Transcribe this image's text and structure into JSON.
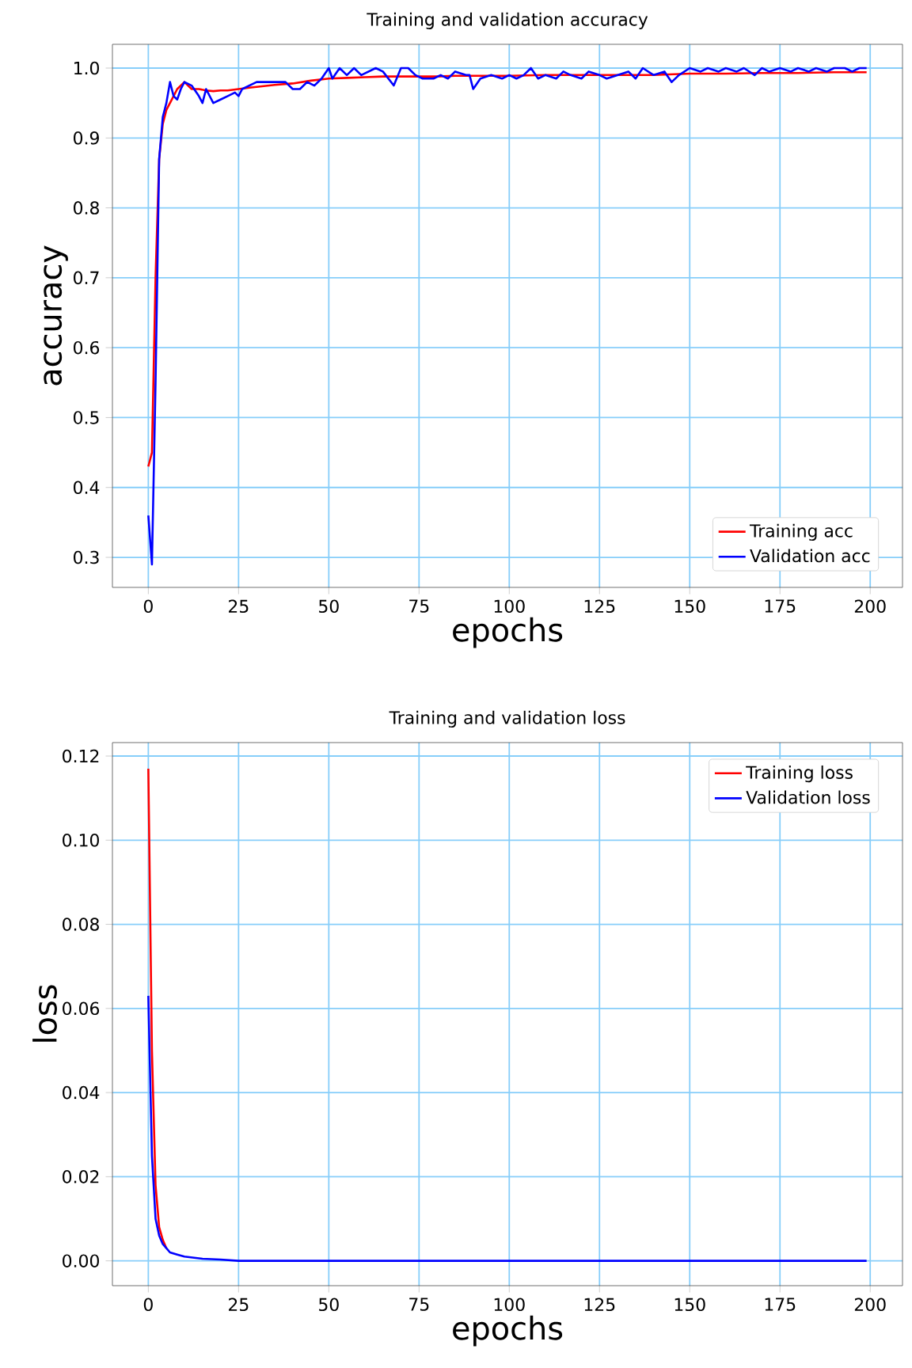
{
  "chart_data": [
    {
      "type": "line",
      "title": "Training and validation accuracy",
      "xlabel": "epochs",
      "ylabel": "accuracy",
      "xlim": [
        -9.95,
        208.95
      ],
      "ylim": [
        0.257,
        1.034
      ],
      "xticks": [
        0,
        25,
        50,
        75,
        100,
        125,
        150,
        175,
        200
      ],
      "yticks": [
        {
          "value": 0.3,
          "label": "0.3"
        },
        {
          "value": 0.4,
          "label": "0.4"
        },
        {
          "value": 0.5,
          "label": "0.5"
        },
        {
          "value": 0.6,
          "label": "0.6"
        },
        {
          "value": 0.7,
          "label": "0.7"
        },
        {
          "value": 0.8,
          "label": "0.8"
        },
        {
          "value": 0.9,
          "label": "0.9"
        },
        {
          "value": 1.0,
          "label": "1.0"
        }
      ],
      "grid": true,
      "legend": "bottom right",
      "series": [
        {
          "name": "Training acc",
          "color": "#ff0000",
          "x": [
            0,
            1,
            2,
            3,
            4,
            5,
            6,
            7,
            8,
            9,
            10,
            11,
            12,
            14,
            16,
            18,
            20,
            22,
            25,
            28,
            30,
            35,
            40,
            45,
            50,
            55,
            60,
            65,
            70,
            75,
            80,
            85,
            90,
            100,
            110,
            120,
            130,
            140,
            150,
            160,
            170,
            180,
            190,
            199
          ],
          "values": [
            0.43,
            0.45,
            0.7,
            0.87,
            0.92,
            0.94,
            0.95,
            0.96,
            0.97,
            0.975,
            0.98,
            0.975,
            0.97,
            0.97,
            0.968,
            0.967,
            0.968,
            0.968,
            0.97,
            0.972,
            0.973,
            0.976,
            0.978,
            0.982,
            0.985,
            0.986,
            0.987,
            0.988,
            0.988,
            0.988,
            0.988,
            0.989,
            0.989,
            0.989,
            0.99,
            0.99,
            0.99,
            0.99,
            0.992,
            0.992,
            0.993,
            0.993,
            0.994,
            0.994
          ]
        },
        {
          "name": "Validation acc",
          "color": "#0000ff",
          "x": [
            0,
            1,
            2,
            3,
            4,
            5,
            6,
            7,
            8,
            9,
            10,
            12,
            14,
            15,
            16,
            18,
            20,
            22,
            24,
            25,
            26,
            28,
            30,
            35,
            38,
            40,
            42,
            44,
            46,
            48,
            50,
            51,
            53,
            55,
            57,
            59,
            61,
            63,
            65,
            68,
            70,
            72,
            74,
            76,
            79,
            81,
            83,
            85,
            88,
            89,
            90,
            92,
            95,
            98,
            100,
            102,
            104,
            106,
            108,
            110,
            113,
            115,
            117,
            120,
            122,
            125,
            127,
            130,
            133,
            135,
            137,
            140,
            143,
            145,
            147,
            150,
            153,
            155,
            158,
            160,
            163,
            165,
            168,
            170,
            172,
            175,
            178,
            180,
            183,
            185,
            188,
            190,
            193,
            195,
            197,
            199
          ],
          "values": [
            0.36,
            0.29,
            0.55,
            0.87,
            0.93,
            0.95,
            0.98,
            0.96,
            0.955,
            0.97,
            0.98,
            0.975,
            0.96,
            0.95,
            0.97,
            0.95,
            0.955,
            0.96,
            0.965,
            0.96,
            0.97,
            0.975,
            0.98,
            0.98,
            0.98,
            0.97,
            0.97,
            0.98,
            0.975,
            0.985,
            1.0,
            0.985,
            1.0,
            0.99,
            1.0,
            0.99,
            0.995,
            1.0,
            0.995,
            0.975,
            1.0,
            1.0,
            0.99,
            0.985,
            0.985,
            0.99,
            0.985,
            0.995,
            0.99,
            0.99,
            0.97,
            0.985,
            0.99,
            0.985,
            0.99,
            0.985,
            0.99,
            1.0,
            0.985,
            0.99,
            0.985,
            0.995,
            0.99,
            0.985,
            0.995,
            0.99,
            0.985,
            0.99,
            0.995,
            0.985,
            1.0,
            0.99,
            0.995,
            0.98,
            0.99,
            1.0,
            0.995,
            1.0,
            0.995,
            1.0,
            0.995,
            1.0,
            0.99,
            1.0,
            0.995,
            1.0,
            0.995,
            1.0,
            0.995,
            1.0,
            0.995,
            1.0,
            1.0,
            0.995,
            1.0,
            1.0
          ]
        }
      ]
    },
    {
      "type": "line",
      "title": "Training and validation loss",
      "xlabel": "epochs",
      "ylabel": "loss",
      "xlim": [
        -9.95,
        208.95
      ],
      "ylim": [
        -0.0059,
        0.1232
      ],
      "xticks": [
        0,
        25,
        50,
        75,
        100,
        125,
        150,
        175,
        200
      ],
      "yticks": [
        {
          "value": 0,
          "label": "0.00"
        },
        {
          "value": 0.02,
          "label": "0.02"
        },
        {
          "value": 0.04,
          "label": "0.04"
        },
        {
          "value": 0.06,
          "label": "0.06"
        },
        {
          "value": 0.08,
          "label": "0.08"
        },
        {
          "value": 0.1,
          "label": "0.10"
        },
        {
          "value": 0.12,
          "label": "0.12"
        }
      ],
      "grid": true,
      "legend": "top right",
      "series": [
        {
          "name": "Training loss",
          "color": "#ff0000",
          "x": [
            0,
            1,
            2,
            3,
            4,
            5
          ],
          "values": [
            0.117,
            0.05,
            0.018,
            0.008,
            0.005,
            0.003
          ]
        },
        {
          "name": "Validation loss",
          "color": "#0000ff",
          "x": [
            0,
            1,
            2,
            3,
            4,
            5,
            6,
            8,
            10,
            15,
            20,
            25,
            50,
            100,
            150,
            199
          ],
          "values": [
            0.063,
            0.025,
            0.01,
            0.006,
            0.004,
            0.003,
            0.002,
            0.0015,
            0.001,
            0.0005,
            0.0003,
            0,
            0,
            0,
            0,
            0
          ]
        }
      ]
    }
  ]
}
